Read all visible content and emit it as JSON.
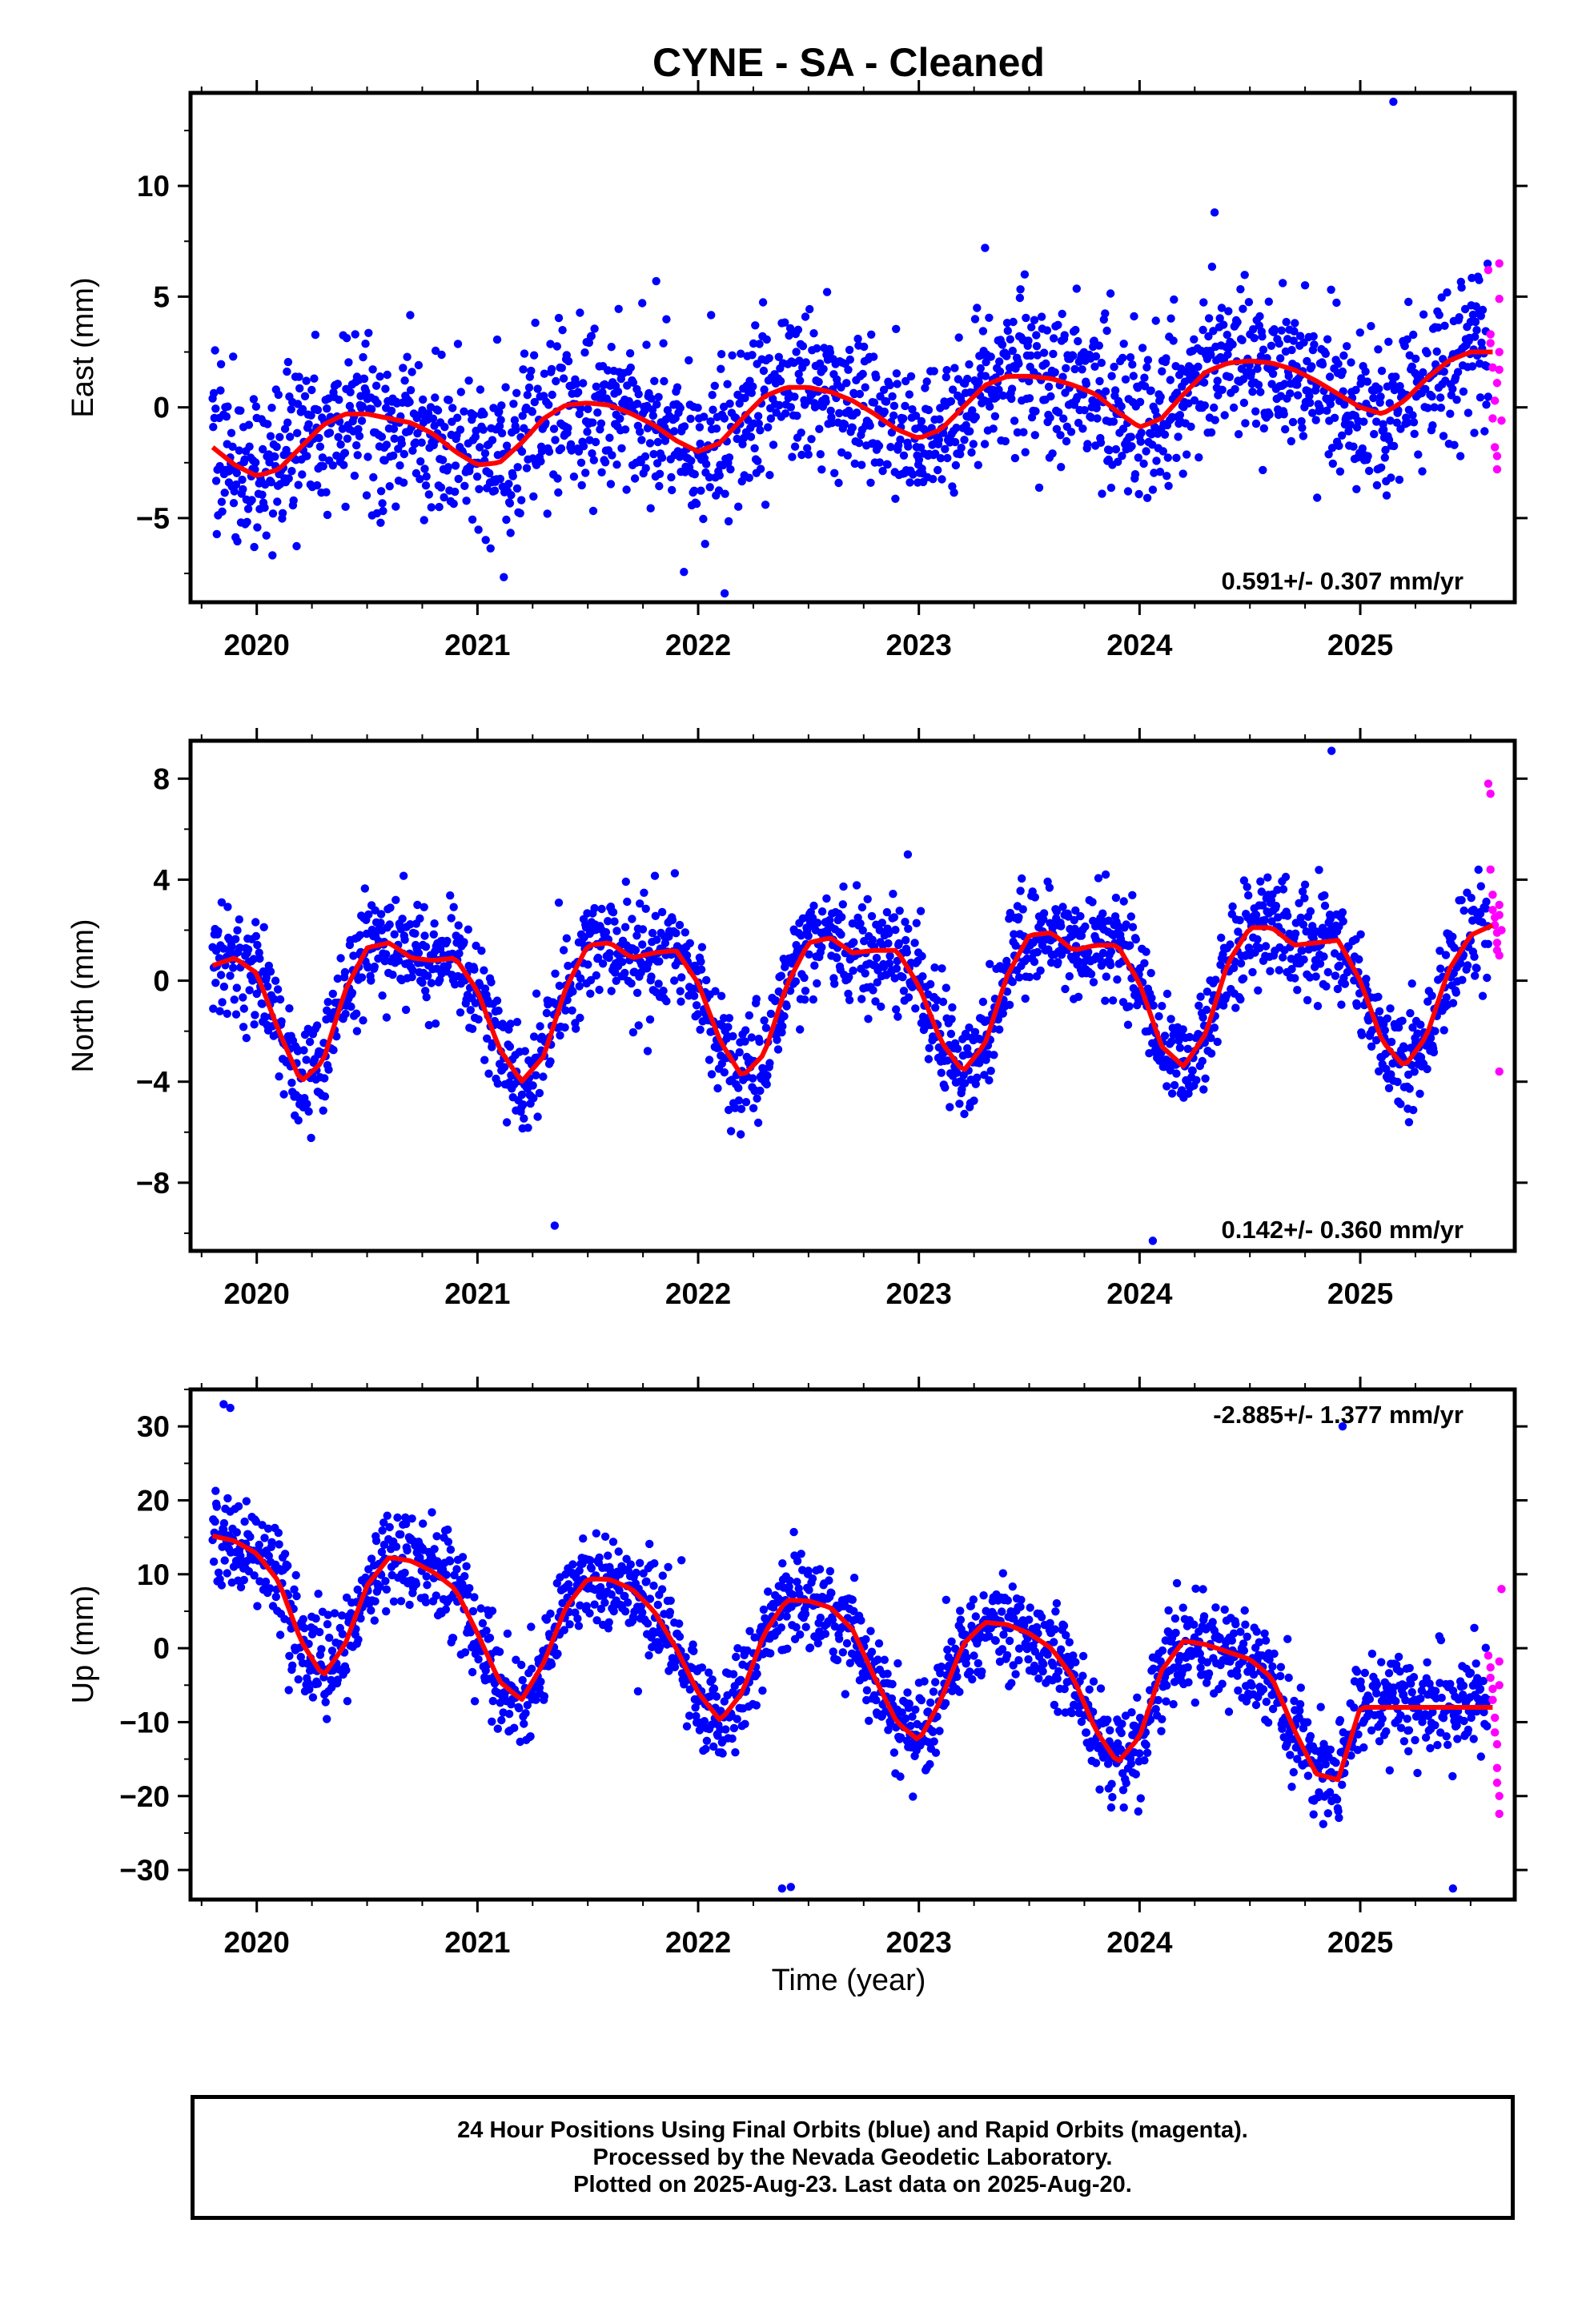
{
  "title": "CYNE  - SA - Cleaned",
  "xlabel": "Time (year)",
  "caption": [
    "24 Hour Positions Using Final Orbits (blue) and Rapid Orbits (magenta).",
    "Processed by the Nevada Geodetic Laboratory.",
    "Plotted on 2025-Aug-23. Last data on 2025-Aug-20."
  ],
  "colors": {
    "final": "#0000ff",
    "rapid": "#ff00ff",
    "fit": "#ff0000",
    "frame": "#000000"
  },
  "chart_data": [
    {
      "type": "scatter",
      "name": "east",
      "ylabel": "East (mm)",
      "xlim": [
        2019.7,
        2025.7
      ],
      "ylim": [
        -8.8,
        14.2
      ],
      "yticks": [
        -5,
        0,
        5,
        10
      ],
      "ytick_labels": [
        "−5",
        "0",
        "5",
        "10"
      ],
      "xticks": [
        2020,
        2021,
        2022,
        2023,
        2024,
        2025
      ],
      "xtick_labels": [
        "2020",
        "2021",
        "2022",
        "2023",
        "2024",
        "2025"
      ],
      "rate_text": "0.591+/- 0.307 mm/yr",
      "rate_pos": "bottom-right",
      "fit_x": [
        2019.8,
        2019.9,
        2020.0,
        2020.1,
        2020.2,
        2020.3,
        2020.4,
        2020.5,
        2020.6,
        2020.7,
        2020.8,
        2020.9,
        2021.0,
        2021.1,
        2021.2,
        2021.3,
        2021.4,
        2021.5,
        2021.6,
        2021.7,
        2021.8,
        2021.9,
        2022.0,
        2022.1,
        2022.2,
        2022.3,
        2022.4,
        2022.5,
        2022.6,
        2022.7,
        2022.8,
        2022.9,
        2023.0,
        2023.1,
        2023.2,
        2023.3,
        2023.4,
        2023.5,
        2023.6,
        2023.7,
        2023.8,
        2023.9,
        2024.0,
        2024.1,
        2024.2,
        2024.3,
        2024.4,
        2024.5,
        2024.6,
        2024.7,
        2024.8,
        2024.9,
        2025.0,
        2025.1,
        2025.2,
        2025.3,
        2025.4,
        2025.5,
        2025.6
      ],
      "fit_y": [
        -1.8,
        -2.6,
        -3.1,
        -2.8,
        -1.8,
        -0.8,
        -0.3,
        -0.3,
        -0.5,
        -0.7,
        -1.2,
        -2.0,
        -2.6,
        -2.5,
        -1.6,
        -0.5,
        0.1,
        0.2,
        0.1,
        -0.3,
        -0.8,
        -1.5,
        -2.0,
        -1.6,
        -0.5,
        0.5,
        0.9,
        0.9,
        0.7,
        0.3,
        -0.3,
        -1.0,
        -1.4,
        -1.0,
        0.0,
        1.0,
        1.4,
        1.4,
        1.3,
        1.0,
        0.6,
        -0.2,
        -0.9,
        -0.5,
        0.6,
        1.6,
        2.0,
        2.1,
        2.0,
        1.7,
        1.2,
        0.6,
        0.0,
        -0.3,
        0.3,
        1.3,
        2.1,
        2.5,
        2.5
      ],
      "points": {
        "amp": 2.8,
        "y0_values": [
          -3.4,
          0.6
        ],
        "seed": 101,
        "outliers_x": [
          2025.15,
          2024.34,
          2022.12,
          2023.3,
          2021.81
        ],
        "outliers_y": [
          13.8,
          8.8,
          -8.4,
          7.2,
          5.7
        ]
      },
      "rapid_x": [
        2025.58,
        2025.59,
        2025.59,
        2025.6,
        2025.6,
        2025.61,
        2025.61,
        2025.62,
        2025.62,
        2025.62,
        2025.63,
        2025.63,
        2025.63,
        2025.63,
        2025.64
      ],
      "rapid_y": [
        6.2,
        3.3,
        2.9,
        1.8,
        -0.5,
        0.3,
        -1.8,
        -2.8,
        -2.2,
        1.1,
        2.5,
        4.9,
        6.5,
        1.7,
        -0.6
      ]
    },
    {
      "type": "scatter",
      "name": "north",
      "ylabel": "North (mm)",
      "xlim": [
        2019.7,
        2025.7
      ],
      "ylim": [
        -10.7,
        9.5
      ],
      "yticks": [
        -8,
        -4,
        0,
        4,
        8
      ],
      "ytick_labels": [
        "−8",
        "−4",
        "0",
        "4",
        "8"
      ],
      "xticks": [
        2020,
        2021,
        2022,
        2023,
        2024,
        2025
      ],
      "xtick_labels": [
        "2020",
        "2021",
        "2022",
        "2023",
        "2024",
        "2025"
      ],
      "rate_text": "0.142+/- 0.360 mm/yr",
      "rate_pos": "bottom-right",
      "fit_x": [
        2019.8,
        2019.9,
        2020.0,
        2020.1,
        2020.2,
        2020.3,
        2020.4,
        2020.5,
        2020.6,
        2020.7,
        2020.8,
        2020.9,
        2021.0,
        2021.1,
        2021.2,
        2021.3,
        2021.4,
        2021.5,
        2021.6,
        2021.7,
        2021.8,
        2021.9,
        2022.0,
        2022.1,
        2022.2,
        2022.3,
        2022.4,
        2022.5,
        2022.6,
        2022.7,
        2022.8,
        2022.9,
        2023.0,
        2023.1,
        2023.2,
        2023.3,
        2023.4,
        2023.5,
        2023.6,
        2023.7,
        2023.8,
        2023.9,
        2024.0,
        2024.1,
        2024.2,
        2024.3,
        2024.4,
        2024.5,
        2024.6,
        2024.7,
        2024.8,
        2024.9,
        2025.0,
        2025.1,
        2025.2,
        2025.3,
        2025.4,
        2025.5,
        2025.6
      ],
      "fit_y": [
        0.6,
        0.9,
        0.3,
        -2.0,
        -4.0,
        -3.2,
        -0.4,
        1.3,
        1.5,
        0.9,
        0.8,
        0.9,
        -0.4,
        -2.7,
        -4.0,
        -3.0,
        -0.3,
        1.4,
        1.5,
        0.9,
        1.1,
        1.2,
        -0.1,
        -2.4,
        -3.8,
        -2.9,
        -0.2,
        1.5,
        1.7,
        1.1,
        1.2,
        1.2,
        -0.2,
        -2.4,
        -3.6,
        -2.5,
        0.2,
        1.8,
        1.9,
        1.2,
        1.4,
        1.4,
        -0.1,
        -2.6,
        -3.4,
        -2.1,
        0.7,
        2.1,
        2.1,
        1.4,
        1.5,
        1.6,
        0.0,
        -2.4,
        -3.4,
        -2.2,
        0.4,
        1.8,
        2.2
      ],
      "points": {
        "amp": 1.7,
        "y0_values": [
          -9.6,
          -10.2
        ],
        "seed": 202,
        "outliers_x": [
          2024.87,
          2021.35,
          2024.06,
          2022.95
        ],
        "outliers_y": [
          9.1,
          -9.7,
          -10.3,
          5.0
        ]
      },
      "rapid_x": [
        2025.58,
        2025.59,
        2025.59,
        2025.6,
        2025.6,
        2025.61,
        2025.61,
        2025.62,
        2025.62,
        2025.62,
        2025.63,
        2025.63,
        2025.63,
        2025.63,
        2025.64
      ],
      "rapid_y": [
        7.8,
        7.4,
        4.4,
        3.4,
        2.8,
        2.5,
        2.2,
        1.9,
        1.5,
        1.2,
        1.0,
        3.0,
        2.6,
        -3.6,
        2.0
      ]
    },
    {
      "type": "scatter",
      "name": "up",
      "ylabel": "Up (mm)",
      "xlim": [
        2019.7,
        2025.7
      ],
      "ylim": [
        -34,
        35
      ],
      "yticks": [
        -30,
        -20,
        -10,
        0,
        10,
        20,
        30
      ],
      "ytick_labels": [
        "−30",
        "−20",
        "−10",
        "0",
        "10",
        "20",
        "30"
      ],
      "xticks": [
        2020,
        2021,
        2022,
        2023,
        2024,
        2025
      ],
      "xtick_labels": [
        "2020",
        "2021",
        "2022",
        "2023",
        "2024",
        "2025"
      ],
      "rate_text": "-2.885+/- 1.377 mm/yr",
      "rate_pos": "top-right",
      "fit_x": [
        2019.8,
        2019.9,
        2020.0,
        2020.1,
        2020.2,
        2020.3,
        2020.4,
        2020.5,
        2020.6,
        2020.7,
        2020.8,
        2020.9,
        2021.0,
        2021.1,
        2021.2,
        2021.3,
        2021.4,
        2021.5,
        2021.6,
        2021.7,
        2021.8,
        2021.9,
        2022.0,
        2022.1,
        2022.2,
        2022.3,
        2022.4,
        2022.5,
        2022.6,
        2022.7,
        2022.8,
        2022.9,
        2023.0,
        2023.1,
        2023.2,
        2023.3,
        2023.4,
        2023.5,
        2023.6,
        2023.7,
        2023.8,
        2023.9,
        2024.0,
        2024.1,
        2024.2,
        2024.3,
        2024.4,
        2024.5,
        2024.6,
        2024.7,
        2024.8,
        2024.9,
        2025.0,
        2025.1,
        2025.2,
        2025.3,
        2025.4,
        2025.5,
        2025.6
      ],
      "fit_y": [
        15.2,
        14.5,
        12.8,
        9.0,
        1.0,
        -3.8,
        0.5,
        8.5,
        12.3,
        11.8,
        10.3,
        8.0,
        2.0,
        -4.5,
        -7.0,
        -2.0,
        5.5,
        9.4,
        9.3,
        8.0,
        5.0,
        0.0,
        -6.0,
        -9.8,
        -6.0,
        2.0,
        6.5,
        6.4,
        5.5,
        2.5,
        -4.0,
        -10.0,
        -12.5,
        -7.0,
        0.5,
        3.5,
        3.2,
        2.0,
        0.0,
        -4.0,
        -11.0,
        -15.5,
        -12.0,
        -3.0,
        1.0,
        0.5,
        -0.5,
        -1.5,
        -4.0,
        -11.0,
        -17.0,
        -17.8,
        -8.0,
        -8.0,
        -8.0,
        -8.0,
        -8.0,
        -8.0,
        -8.0
      ],
      "points": {
        "amp": 5.5,
        "y0_values": [
          0,
          0
        ],
        "seed": 303,
        "outliers_x": [
          2019.85,
          2019.88,
          2024.92,
          2022.38,
          2022.42,
          2025.42
        ],
        "outliers_y": [
          33.0,
          32.5,
          30.0,
          -32.5,
          -32.3,
          -32.5
        ]
      },
      "rapid_x": [
        2025.58,
        2025.59,
        2025.59,
        2025.6,
        2025.6,
        2025.61,
        2025.61,
        2025.62,
        2025.62,
        2025.62,
        2025.63,
        2025.63,
        2025.63,
        2025.63,
        2025.64
      ],
      "rapid_y": [
        -1.0,
        -2.6,
        -4.0,
        -5.5,
        -7.0,
        -9.4,
        -11.4,
        -13.0,
        -16.2,
        -18.2,
        -20.0,
        -22.4,
        -1.8,
        -5.0,
        8.0
      ]
    }
  ]
}
